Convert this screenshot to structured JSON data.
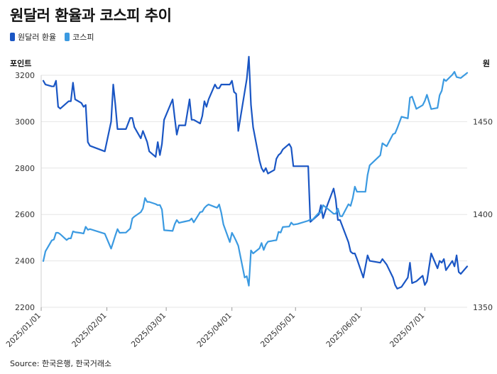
{
  "header": {
    "title": "원달러 환율과 코스피 추이"
  },
  "axis_units": {
    "left": "포인트",
    "right": "원"
  },
  "source": "Source: 한국은행, 한국거래소",
  "colors": {
    "usdkrw": "#1a56c4",
    "kospi": "#3b9ae1",
    "grid": "#e6e6e6"
  },
  "chart_data": {
    "type": "line",
    "title": "원달러 환율과 코스피 추이",
    "legend_position": "top-left",
    "grid": true,
    "x_ticks": [
      "2025/01/01",
      "2025/02/01",
      "2025/03/01",
      "2025/04/01",
      "2025/05/01",
      "2025/06/01",
      "2025/07/01"
    ],
    "x_range": [
      "2025-01-01",
      "2025-07-21"
    ],
    "y_left": {
      "label": "포인트",
      "range": [
        2200,
        3200
      ],
      "ticks": [
        2200,
        2400,
        2600,
        2800,
        3000,
        3200
      ]
    },
    "y_right": {
      "label": "원",
      "range": [
        1350,
        1475
      ],
      "ticks": [
        1350,
        1400,
        1450
      ]
    },
    "series": [
      {
        "name": "원달러 환율",
        "axis": "right",
        "color": "#1a56c4",
        "points": [
          [
            "2025-01-02",
            1472
          ],
          [
            "2025-01-03",
            1470
          ],
          [
            "2025-01-06",
            1469
          ],
          [
            "2025-01-07",
            1469
          ],
          [
            "2025-01-08",
            1472
          ],
          [
            "2025-01-09",
            1458
          ],
          [
            "2025-01-10",
            1457
          ],
          [
            "2025-01-13",
            1460
          ],
          [
            "2025-01-14",
            1461
          ],
          [
            "2025-01-15",
            1461
          ],
          [
            "2025-01-16",
            1471
          ],
          [
            "2025-01-17",
            1462
          ],
          [
            "2025-01-20",
            1460
          ],
          [
            "2025-01-21",
            1458
          ],
          [
            "2025-01-22",
            1459
          ],
          [
            "2025-01-23",
            1439
          ],
          [
            "2025-01-24",
            1437
          ],
          [
            "2025-01-31",
            1434
          ],
          [
            "2025-02-03",
            1450
          ],
          [
            "2025-02-04",
            1470
          ],
          [
            "2025-02-05",
            1459
          ],
          [
            "2025-02-06",
            1446
          ],
          [
            "2025-02-07",
            1446
          ],
          [
            "2025-02-10",
            1446
          ],
          [
            "2025-02-12",
            1452
          ],
          [
            "2025-02-13",
            1452
          ],
          [
            "2025-02-14",
            1447
          ],
          [
            "2025-02-17",
            1441
          ],
          [
            "2025-02-18",
            1445
          ],
          [
            "2025-02-19",
            1442
          ],
          [
            "2025-02-20",
            1439
          ],
          [
            "2025-02-21",
            1434
          ],
          [
            "2025-02-24",
            1431
          ],
          [
            "2025-02-25",
            1439
          ],
          [
            "2025-02-26",
            1432
          ],
          [
            "2025-02-27",
            1438
          ],
          [
            "2025-02-28",
            1451
          ],
          [
            "2025-03-04",
            1462
          ],
          [
            "2025-03-05",
            1452
          ],
          [
            "2025-03-06",
            1443
          ],
          [
            "2025-03-07",
            1448
          ],
          [
            "2025-03-10",
            1448
          ],
          [
            "2025-03-12",
            1462
          ],
          [
            "2025-03-13",
            1451
          ],
          [
            "2025-03-14",
            1451
          ],
          [
            "2025-03-17",
            1449
          ],
          [
            "2025-03-18",
            1453
          ],
          [
            "2025-03-19",
            1461
          ],
          [
            "2025-03-20",
            1458
          ],
          [
            "2025-03-21",
            1462
          ],
          [
            "2025-03-24",
            1470
          ],
          [
            "2025-03-25",
            1468
          ],
          [
            "2025-03-26",
            1468
          ],
          [
            "2025-03-27",
            1470
          ],
          [
            "2025-03-28",
            1470
          ],
          [
            "2025-03-31",
            1470
          ],
          [
            "2025-04-01",
            1472
          ],
          [
            "2025-04-02",
            1466
          ],
          [
            "2025-04-03",
            1465
          ],
          [
            "2025-04-04",
            1445
          ],
          [
            "2025-04-07",
            1466
          ],
          [
            "2025-04-08",
            1473
          ],
          [
            "2025-04-09",
            1485
          ],
          [
            "2025-04-10",
            1459
          ],
          [
            "2025-04-11",
            1447
          ],
          [
            "2025-04-14",
            1429
          ],
          [
            "2025-04-15",
            1425
          ],
          [
            "2025-04-16",
            1423
          ],
          [
            "2025-04-17",
            1425
          ],
          [
            "2025-04-18",
            1422
          ],
          [
            "2025-04-21",
            1424
          ],
          [
            "2025-04-22",
            1430
          ],
          [
            "2025-04-23",
            1432
          ],
          [
            "2025-04-24",
            1433
          ],
          [
            "2025-04-25",
            1435
          ],
          [
            "2025-04-28",
            1438
          ],
          [
            "2025-04-29",
            1436
          ],
          [
            "2025-04-30",
            1426
          ],
          [
            "2025-05-02",
            1426
          ],
          [
            "2025-05-07",
            1426
          ],
          [
            "2025-05-08",
            1396
          ],
          [
            "2025-05-09",
            1397
          ],
          [
            "2025-05-12",
            1400
          ],
          [
            "2025-05-13",
            1405
          ],
          [
            "2025-05-14",
            1398
          ],
          [
            "2025-05-16",
            1405
          ],
          [
            "2025-05-19",
            1414
          ],
          [
            "2025-05-20",
            1408
          ],
          [
            "2025-05-21",
            1397
          ],
          [
            "2025-05-22",
            1397
          ],
          [
            "2025-05-23",
            1394
          ],
          [
            "2025-05-26",
            1385
          ],
          [
            "2025-05-27",
            1380
          ],
          [
            "2025-05-28",
            1379
          ],
          [
            "2025-05-29",
            1379
          ],
          [
            "2025-05-30",
            1376
          ],
          [
            "2025-06-02",
            1366
          ],
          [
            "2025-06-03",
            1372
          ],
          [
            "2025-06-04",
            1378
          ],
          [
            "2025-06-05",
            1375
          ],
          [
            "2025-06-10",
            1374
          ],
          [
            "2025-06-11",
            1376
          ],
          [
            "2025-06-13",
            1373
          ],
          [
            "2025-06-16",
            1366
          ],
          [
            "2025-06-17",
            1362
          ],
          [
            "2025-06-18",
            1360
          ],
          [
            "2025-06-20",
            1361
          ],
          [
            "2025-06-23",
            1366
          ],
          [
            "2025-06-24",
            1374
          ],
          [
            "2025-06-25",
            1363
          ],
          [
            "2025-06-27",
            1364
          ],
          [
            "2025-06-30",
            1367
          ],
          [
            "2025-07-01",
            1362
          ],
          [
            "2025-07-02",
            1364
          ],
          [
            "2025-07-04",
            1379
          ],
          [
            "2025-07-07",
            1371
          ],
          [
            "2025-07-08",
            1375
          ],
          [
            "2025-07-09",
            1374
          ],
          [
            "2025-07-10",
            1376
          ],
          [
            "2025-07-11",
            1370
          ],
          [
            "2025-07-14",
            1375
          ],
          [
            "2025-07-15",
            1372
          ],
          [
            "2025-07-16",
            1378
          ],
          [
            "2025-07-17",
            1369
          ],
          [
            "2025-07-18",
            1368
          ],
          [
            "2025-07-21",
            1372
          ]
        ]
      },
      {
        "name": "코스피",
        "axis": "left",
        "color": "#3b9ae1",
        "points": [
          [
            "2025-01-02",
            2399
          ],
          [
            "2025-01-03",
            2441
          ],
          [
            "2025-01-06",
            2488
          ],
          [
            "2025-01-07",
            2492
          ],
          [
            "2025-01-08",
            2521
          ],
          [
            "2025-01-09",
            2521
          ],
          [
            "2025-01-10",
            2515
          ],
          [
            "2025-01-13",
            2490
          ],
          [
            "2025-01-14",
            2497
          ],
          [
            "2025-01-15",
            2497
          ],
          [
            "2025-01-16",
            2527
          ],
          [
            "2025-01-17",
            2524
          ],
          [
            "2025-01-20",
            2520
          ],
          [
            "2025-01-21",
            2518
          ],
          [
            "2025-01-22",
            2547
          ],
          [
            "2025-01-23",
            2534
          ],
          [
            "2025-01-24",
            2537
          ],
          [
            "2025-01-31",
            2517
          ],
          [
            "2025-02-03",
            2453
          ],
          [
            "2025-02-04",
            2481
          ],
          [
            "2025-02-05",
            2510
          ],
          [
            "2025-02-06",
            2537
          ],
          [
            "2025-02-07",
            2521
          ],
          [
            "2025-02-10",
            2522
          ],
          [
            "2025-02-12",
            2539
          ],
          [
            "2025-02-13",
            2583
          ],
          [
            "2025-02-14",
            2591
          ],
          [
            "2025-02-17",
            2610
          ],
          [
            "2025-02-18",
            2626
          ],
          [
            "2025-02-19",
            2671
          ],
          [
            "2025-02-20",
            2654
          ],
          [
            "2025-02-21",
            2654
          ],
          [
            "2025-02-24",
            2645
          ],
          [
            "2025-02-25",
            2640
          ],
          [
            "2025-02-26",
            2641
          ],
          [
            "2025-02-27",
            2621
          ],
          [
            "2025-02-28",
            2532
          ],
          [
            "2025-03-04",
            2529
          ],
          [
            "2025-03-05",
            2558
          ],
          [
            "2025-03-06",
            2576
          ],
          [
            "2025-03-07",
            2564
          ],
          [
            "2025-03-10",
            2570
          ],
          [
            "2025-03-12",
            2574
          ],
          [
            "2025-03-13",
            2583
          ],
          [
            "2025-03-14",
            2566
          ],
          [
            "2025-03-17",
            2610
          ],
          [
            "2025-03-18",
            2612
          ],
          [
            "2025-03-19",
            2628
          ],
          [
            "2025-03-20",
            2637
          ],
          [
            "2025-03-21",
            2643
          ],
          [
            "2025-03-24",
            2632
          ],
          [
            "2025-03-25",
            2629
          ],
          [
            "2025-03-26",
            2643
          ],
          [
            "2025-03-27",
            2607
          ],
          [
            "2025-03-28",
            2557
          ],
          [
            "2025-03-31",
            2481
          ],
          [
            "2025-04-01",
            2521
          ],
          [
            "2025-04-02",
            2505
          ],
          [
            "2025-04-03",
            2486
          ],
          [
            "2025-04-04",
            2465
          ],
          [
            "2025-04-07",
            2328
          ],
          [
            "2025-04-08",
            2334
          ],
          [
            "2025-04-09",
            2293
          ],
          [
            "2025-04-10",
            2445
          ],
          [
            "2025-04-11",
            2432
          ],
          [
            "2025-04-14",
            2454
          ],
          [
            "2025-04-15",
            2477
          ],
          [
            "2025-04-16",
            2447
          ],
          [
            "2025-04-17",
            2470
          ],
          [
            "2025-04-18",
            2483
          ],
          [
            "2025-04-21",
            2488
          ],
          [
            "2025-04-22",
            2489
          ],
          [
            "2025-04-23",
            2525
          ],
          [
            "2025-04-24",
            2522
          ],
          [
            "2025-04-25",
            2546
          ],
          [
            "2025-04-28",
            2548
          ],
          [
            "2025-04-29",
            2565
          ],
          [
            "2025-04-30",
            2556
          ],
          [
            "2025-05-02",
            2559
          ],
          [
            "2025-05-07",
            2573
          ],
          [
            "2025-05-08",
            2578
          ],
          [
            "2025-05-09",
            2577
          ],
          [
            "2025-05-12",
            2607
          ],
          [
            "2025-05-13",
            2608
          ],
          [
            "2025-05-14",
            2640
          ],
          [
            "2025-05-16",
            2626
          ],
          [
            "2025-05-19",
            2603
          ],
          [
            "2025-05-20",
            2603
          ],
          [
            "2025-05-21",
            2625
          ],
          [
            "2025-05-22",
            2593
          ],
          [
            "2025-05-23",
            2592
          ],
          [
            "2025-05-26",
            2644
          ],
          [
            "2025-05-27",
            2637
          ],
          [
            "2025-05-28",
            2670
          ],
          [
            "2025-05-29",
            2720
          ],
          [
            "2025-05-30",
            2698
          ],
          [
            "2025-06-02",
            2698
          ],
          [
            "2025-06-03",
            2698
          ],
          [
            "2025-06-04",
            2770
          ],
          [
            "2025-06-05",
            2812
          ],
          [
            "2025-06-10",
            2855
          ],
          [
            "2025-06-11",
            2907
          ],
          [
            "2025-06-13",
            2894
          ],
          [
            "2025-06-16",
            2946
          ],
          [
            "2025-06-17",
            2950
          ],
          [
            "2025-06-18",
            2972
          ],
          [
            "2025-06-20",
            3021
          ],
          [
            "2025-06-23",
            3014
          ],
          [
            "2025-06-24",
            3103
          ],
          [
            "2025-06-25",
            3108
          ],
          [
            "2025-06-27",
            3055
          ],
          [
            "2025-06-30",
            3071
          ],
          [
            "2025-07-01",
            3089
          ],
          [
            "2025-07-02",
            3116
          ],
          [
            "2025-07-04",
            3054
          ],
          [
            "2025-07-07",
            3059
          ],
          [
            "2025-07-08",
            3114
          ],
          [
            "2025-07-09",
            3133
          ],
          [
            "2025-07-10",
            3183
          ],
          [
            "2025-07-11",
            3175
          ],
          [
            "2025-07-14",
            3202
          ],
          [
            "2025-07-15",
            3215
          ],
          [
            "2025-07-16",
            3192
          ],
          [
            "2025-07-17",
            3190
          ],
          [
            "2025-07-18",
            3188
          ],
          [
            "2025-07-21",
            3210
          ]
        ]
      }
    ]
  }
}
